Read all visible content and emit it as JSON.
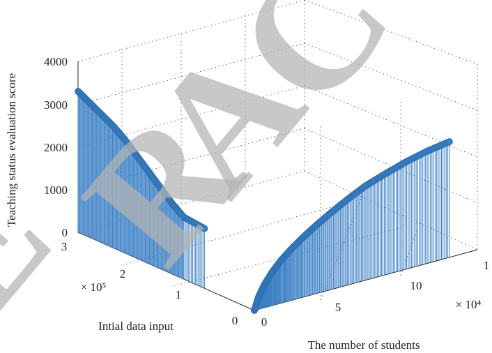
{
  "chart_data": {
    "type": "stem3",
    "title": "",
    "zlabel": "Teaching status evaluation score",
    "xlabel": "The number of students",
    "ylabel": "Intial data input",
    "zlim": [
      0,
      4000
    ],
    "z_ticks": [
      "0",
      "1000",
      "2000",
      "3000",
      "4000"
    ],
    "x_ticks": [
      "0",
      "5",
      "10",
      "1"
    ],
    "y_ticks": [
      "0",
      "1",
      "2",
      "3"
    ],
    "x_multiplier": "× 10⁴",
    "y_multiplier": "× 10⁵",
    "grid": true,
    "series": [
      {
        "color": "#3a7fc4",
        "points": [
          {
            "x": 0,
            "y": 3.0,
            "z": 3300
          },
          {
            "x": 0,
            "y": 2.8,
            "z": 3150
          },
          {
            "x": 0,
            "y": 2.6,
            "z": 3000
          },
          {
            "x": 0,
            "y": 2.4,
            "z": 2850
          },
          {
            "x": 0,
            "y": 2.2,
            "z": 2650
          },
          {
            "x": 0,
            "y": 2.0,
            "z": 2400
          },
          {
            "x": 0,
            "y": 1.8,
            "z": 2150
          },
          {
            "x": 0,
            "y": 1.6,
            "z": 1900
          },
          {
            "x": 0,
            "y": 1.4,
            "z": 1650
          },
          {
            "x": 0,
            "y": 1.2,
            "z": 1450
          },
          {
            "x": 0,
            "y": 0.85,
            "z": 1400
          }
        ]
      },
      {
        "color": "#3a7fc4",
        "points": [
          {
            "x": 0,
            "y": 0,
            "z": 0
          },
          {
            "x": 0.3,
            "y": 0,
            "z": 300
          },
          {
            "x": 0.7,
            "y": 0,
            "z": 550
          },
          {
            "x": 1.2,
            "y": 0,
            "z": 780
          },
          {
            "x": 1.8,
            "y": 0,
            "z": 1000
          },
          {
            "x": 2.5,
            "y": 0,
            "z": 1200
          },
          {
            "x": 3.3,
            "y": 0,
            "z": 1400
          },
          {
            "x": 4.2,
            "y": 0,
            "z": 1600
          },
          {
            "x": 5.2,
            "y": 0,
            "z": 1800
          },
          {
            "x": 6.3,
            "y": 0,
            "z": 2000
          },
          {
            "x": 7.5,
            "y": 0,
            "z": 2200
          },
          {
            "x": 8.8,
            "y": 0,
            "z": 2350
          },
          {
            "x": 10.2,
            "y": 0,
            "z": 2500
          },
          {
            "x": 11.7,
            "y": 0,
            "z": 2620
          },
          {
            "x": 13.2,
            "y": 0,
            "z": 2700
          }
        ]
      }
    ]
  },
  "watermark": {
    "text": "RETRACTED"
  }
}
